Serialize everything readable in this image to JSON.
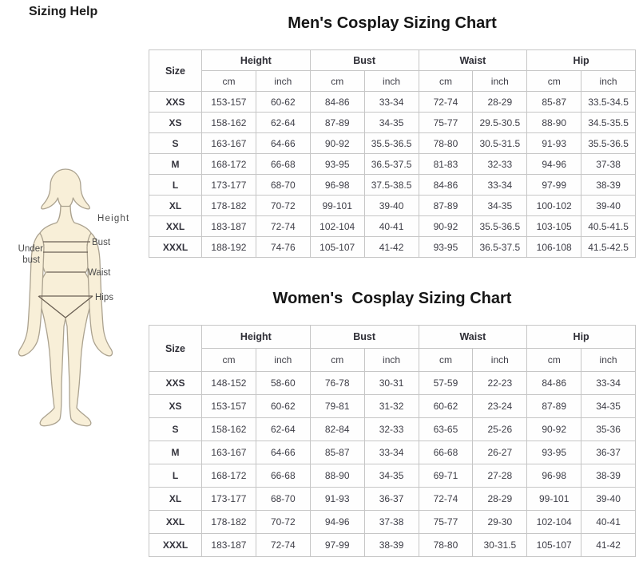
{
  "page_title": "Sizing Help",
  "figure": {
    "labels": {
      "height": "Height",
      "bust": "Bust",
      "under_bust_line1": "Under",
      "under_bust_line2": "bust",
      "waist": "Waist",
      "hips": "Hips"
    },
    "body_fill": "#f8efd8",
    "body_outline": "#aba28f",
    "measure_line_color": "#6b6054"
  },
  "tables": [
    {
      "id": "mens",
      "title": "Men's Cosplay Sizing Chart",
      "size_header": "Size",
      "groups": [
        "Height",
        "Bust",
        "Waist",
        "Hip"
      ],
      "units": [
        "cm",
        "inch"
      ],
      "rows": [
        {
          "size": "XXS",
          "cells": [
            "153-157",
            "60-62",
            "84-86",
            "33-34",
            "72-74",
            "28-29",
            "85-87",
            "33.5-34.5"
          ]
        },
        {
          "size": "XS",
          "cells": [
            "158-162",
            "62-64",
            "87-89",
            "34-35",
            "75-77",
            "29.5-30.5",
            "88-90",
            "34.5-35.5"
          ]
        },
        {
          "size": "S",
          "cells": [
            "163-167",
            "64-66",
            "90-92",
            "35.5-36.5",
            "78-80",
            "30.5-31.5",
            "91-93",
            "35.5-36.5"
          ]
        },
        {
          "size": "M",
          "cells": [
            "168-172",
            "66-68",
            "93-95",
            "36.5-37.5",
            "81-83",
            "32-33",
            "94-96",
            "37-38"
          ]
        },
        {
          "size": "L",
          "cells": [
            "173-177",
            "68-70",
            "96-98",
            "37.5-38.5",
            "84-86",
            "33-34",
            "97-99",
            "38-39"
          ]
        },
        {
          "size": "XL",
          "cells": [
            "178-182",
            "70-72",
            "99-101",
            "39-40",
            "87-89",
            "34-35",
            "100-102",
            "39-40"
          ]
        },
        {
          "size": "XXL",
          "cells": [
            "183-187",
            "72-74",
            "102-104",
            "40-41",
            "90-92",
            "35.5-36.5",
            "103-105",
            "40.5-41.5"
          ]
        },
        {
          "size": "XXXL",
          "cells": [
            "188-192",
            "74-76",
            "105-107",
            "41-42",
            "93-95",
            "36.5-37.5",
            "106-108",
            "41.5-42.5"
          ]
        }
      ]
    },
    {
      "id": "womens",
      "title": "Women's  Cosplay Sizing Chart",
      "size_header": "Size",
      "groups": [
        "Height",
        "Bust",
        "Waist",
        "Hip"
      ],
      "units": [
        "cm",
        "inch"
      ],
      "rows": [
        {
          "size": "XXS",
          "cells": [
            "148-152",
            "58-60",
            "76-78",
            "30-31",
            "57-59",
            "22-23",
            "84-86",
            "33-34"
          ]
        },
        {
          "size": "XS",
          "cells": [
            "153-157",
            "60-62",
            "79-81",
            "31-32",
            "60-62",
            "23-24",
            "87-89",
            "34-35"
          ]
        },
        {
          "size": "S",
          "cells": [
            "158-162",
            "62-64",
            "82-84",
            "32-33",
            "63-65",
            "25-26",
            "90-92",
            "35-36"
          ]
        },
        {
          "size": "M",
          "cells": [
            "163-167",
            "64-66",
            "85-87",
            "33-34",
            "66-68",
            "26-27",
            "93-95",
            "36-37"
          ]
        },
        {
          "size": "L",
          "cells": [
            "168-172",
            "66-68",
            "88-90",
            "34-35",
            "69-71",
            "27-28",
            "96-98",
            "38-39"
          ]
        },
        {
          "size": "XL",
          "cells": [
            "173-177",
            "68-70",
            "91-93",
            "36-37",
            "72-74",
            "28-29",
            "99-101",
            "39-40"
          ]
        },
        {
          "size": "XXL",
          "cells": [
            "178-182",
            "70-72",
            "94-96",
            "37-38",
            "75-77",
            "29-30",
            "102-104",
            "40-41"
          ]
        },
        {
          "size": "XXXL",
          "cells": [
            "183-187",
            "72-74",
            "97-99",
            "38-39",
            "78-80",
            "30-31.5",
            "105-107",
            "41-42"
          ]
        }
      ]
    }
  ]
}
